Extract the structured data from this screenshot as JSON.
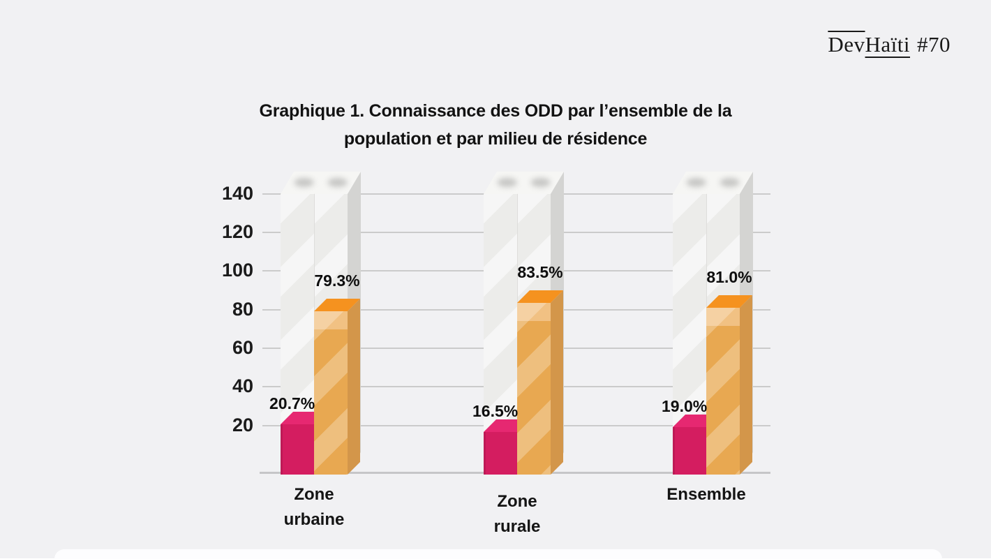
{
  "logo": {
    "part1": "Dev",
    "part2": "Haïti",
    "issue": "#70"
  },
  "title_lines": [
    "Graphique 1. Connaissance des ODD par l’ensemble de la",
    "population et par milieu de résidence"
  ],
  "chart_data": {
    "type": "bar",
    "title": "Graphique 1. Connaissance des ODD par l’ensemble de la population et par milieu de résidence",
    "categories": [
      "Zone urbaine",
      "Zone rurale",
      "Ensemble"
    ],
    "category_label_lines": [
      [
        "Zone",
        "urbaine"
      ],
      [
        "Zone",
        "rurale"
      ],
      [
        "Ensemble"
      ]
    ],
    "series": [
      {
        "color_name": "magenta",
        "color": "#d41d60",
        "values": [
          20.7,
          16.5,
          19.0
        ],
        "labels": [
          "20.7%",
          "16.5%",
          "19.0%"
        ]
      },
      {
        "color_name": "orange",
        "color": "#e8a851",
        "values": [
          79.3,
          83.5,
          81.0
        ],
        "labels": [
          "79.3%",
          "83.5%",
          "81.0%"
        ]
      }
    ],
    "y_axis": {
      "ticks": [
        "140",
        "120",
        "100",
        "80",
        "60",
        "40",
        "20"
      ],
      "tick_values": [
        140,
        120,
        100,
        80,
        60,
        40,
        20
      ],
      "range": [
        0,
        150
      ]
    },
    "grid": true,
    "legend": false,
    "background_columns": {
      "present": true,
      "height_value": 140
    }
  }
}
